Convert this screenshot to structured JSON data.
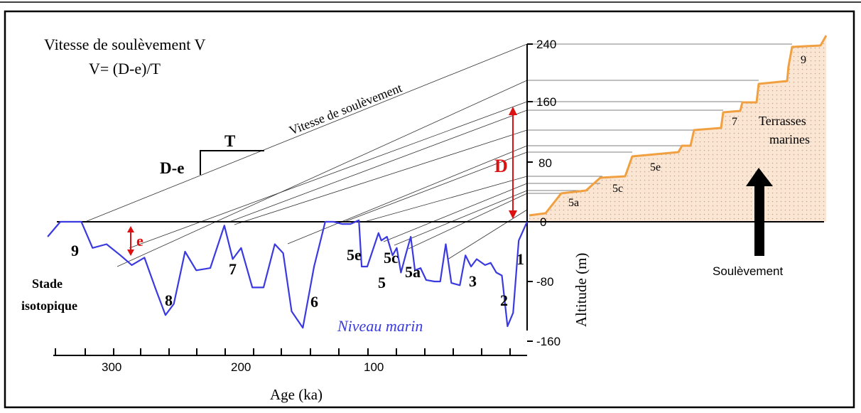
{
  "title": {
    "line1": "Vitesse de soulèvement V",
    "line2": "V= (D-e)/T"
  },
  "formula": {
    "numerator": "D-e",
    "denominator": "T"
  },
  "uplift_rate_label": "Vitesse de soulèvement",
  "x_axis": {
    "label": "Age (ka)",
    "ticks": [
      "300",
      "200",
      "100"
    ]
  },
  "y_axis": {
    "label": "Altitude (m)",
    "ticks": [
      "240",
      "160",
      "80",
      "0",
      "-80",
      "-160"
    ]
  },
  "markers": {
    "D": "D",
    "e": "e"
  },
  "stage_caption": {
    "line1": "Stade",
    "line2": "isotopique"
  },
  "stage_labels": [
    "9",
    "8",
    "7",
    "6",
    "5e",
    "5c",
    "5",
    "5a",
    "3",
    "2",
    "1"
  ],
  "sea_level_label": "Niveau marin",
  "terraces": {
    "caption_line1": "Terrasses",
    "caption_line2": "marines",
    "labels": [
      "5a",
      "5c",
      "5e",
      "7",
      "9"
    ]
  },
  "uplift_arrow_label": "Soulèvement",
  "colors": {
    "sea_level_curve": "#3a3ae0",
    "terrace_profile": "#f0a040",
    "terrace_fill": "#fbe6d4",
    "marker": "#dd1111",
    "axis": "#000000"
  },
  "chart_data": {
    "type": "line",
    "series": [
      {
        "name": "Niveau marin",
        "x": [
          342,
          333,
          318,
          310,
          300,
          290,
          282,
          273,
          265,
          258,
          252,
          244,
          236,
          226,
          216,
          210,
          204,
          196,
          188,
          180,
          174,
          168,
          160,
          152,
          144,
          138,
          132,
          126,
          120,
          118,
          114,
          106,
          104,
          100,
          96,
          93,
          90,
          86,
          83,
          80,
          76,
          72,
          66,
          62,
          58,
          54,
          48,
          44,
          40,
          36,
          30,
          26,
          22,
          18,
          14,
          10,
          6,
          0
        ],
        "y": [
          -20,
          0,
          0,
          -35,
          -30,
          -45,
          -58,
          -48,
          -90,
          -125,
          -110,
          -40,
          -65,
          -62,
          -5,
          -50,
          -35,
          -88,
          -88,
          -30,
          -42,
          -120,
          -142,
          -60,
          0,
          0,
          -3,
          -3,
          2,
          -60,
          -60,
          -15,
          -25,
          -20,
          -45,
          -35,
          -68,
          -40,
          -20,
          -65,
          -62,
          -78,
          -80,
          -80,
          -30,
          -82,
          -85,
          -45,
          -60,
          -50,
          -58,
          -55,
          -68,
          -72,
          -140,
          -122,
          -25,
          0
        ]
      }
    ],
    "xlabel": "Age (ka)",
    "ylabel": "Altitude (m)",
    "xlim": [
      0,
      345
    ],
    "ylim": [
      -160,
      240
    ],
    "x_reversed": true
  }
}
